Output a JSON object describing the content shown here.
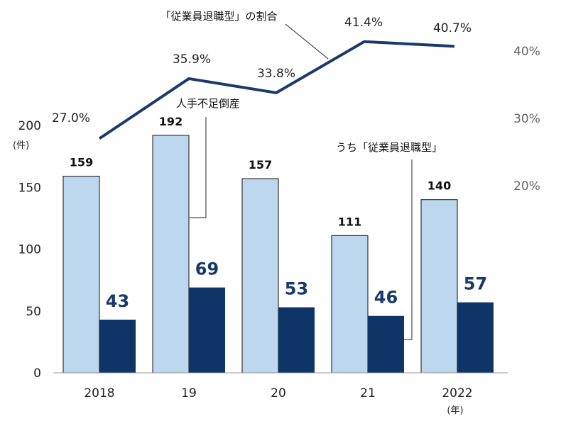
{
  "chart_data": {
    "type": "bar",
    "categories": [
      "2018",
      "19",
      "20",
      "21",
      "2022"
    ],
    "series": [
      {
        "name": "人手不足倒産",
        "values": [
          159,
          192,
          157,
          111,
          140
        ],
        "color": "#bdd7ee"
      },
      {
        "name": "うち「従業員退職型」",
        "values": [
          43,
          69,
          53,
          46,
          57
        ],
        "color": "#0f3468"
      }
    ],
    "line_series": {
      "name": "「従業員退職型」の割合",
      "values": [
        27.0,
        35.9,
        33.8,
        41.4,
        40.7
      ],
      "labels": [
        "27.0%",
        "35.9%",
        "33.8%",
        "41.4%",
        "40.7%"
      ],
      "color": "#1a3a6b"
    },
    "ylim": [
      0,
      200
    ],
    "yticks": [
      "0",
      "50",
      "100",
      "150",
      "200"
    ],
    "y2ticks": [
      {
        "value": 20,
        "label": "20%"
      },
      {
        "value": 30,
        "label": "30%"
      },
      {
        "value": 40,
        "label": "40%"
      }
    ],
    "y_unit": "(件)",
    "x_unit": "(年)",
    "grid": false
  }
}
